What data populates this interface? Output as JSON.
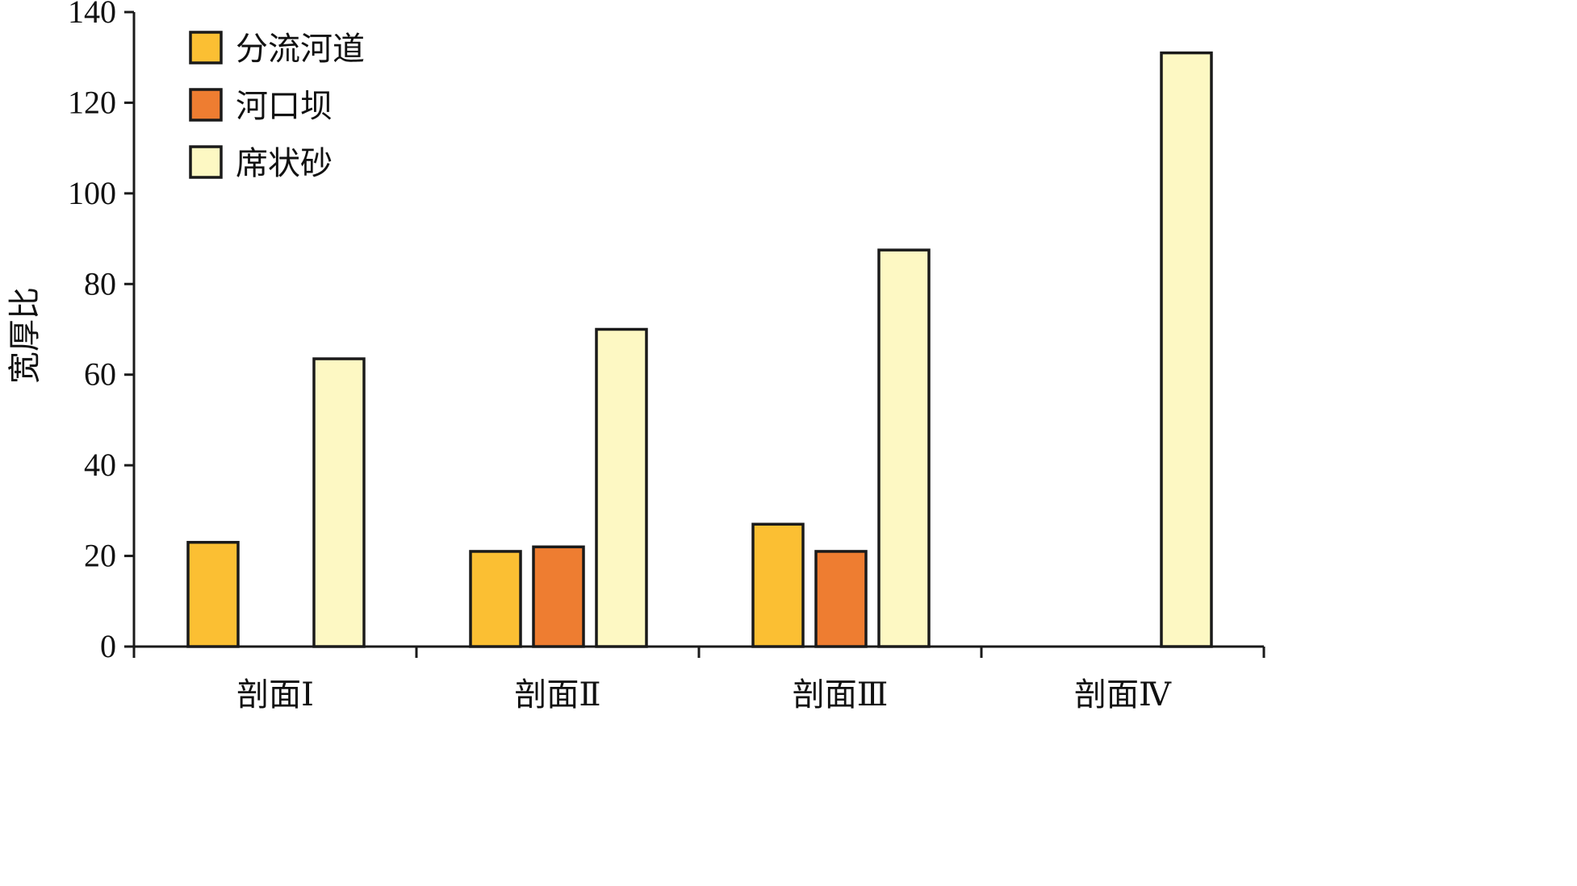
{
  "chart_data": {
    "type": "bar",
    "title": "",
    "xlabel": "",
    "ylabel": "宽厚比",
    "ylim": [
      0,
      140
    ],
    "yticks": [
      0,
      20,
      40,
      60,
      80,
      100,
      120,
      140
    ],
    "categories": [
      "剖面Ⅰ",
      "剖面Ⅱ",
      "剖面Ⅲ",
      "剖面Ⅳ"
    ],
    "series": [
      {
        "name": "分流河道",
        "color": "#fbbf33",
        "values": [
          23,
          21,
          27,
          null
        ]
      },
      {
        "name": "河口坝",
        "color": "#ee7d31",
        "values": [
          null,
          22,
          21,
          null
        ]
      },
      {
        "name": "席状砂",
        "color": "#fdf8c3",
        "values": [
          63.5,
          70,
          87.5,
          131
        ]
      }
    ],
    "grid": false,
    "legend_position": "top-left",
    "bar_outline_color": "#1a1a1a"
  }
}
